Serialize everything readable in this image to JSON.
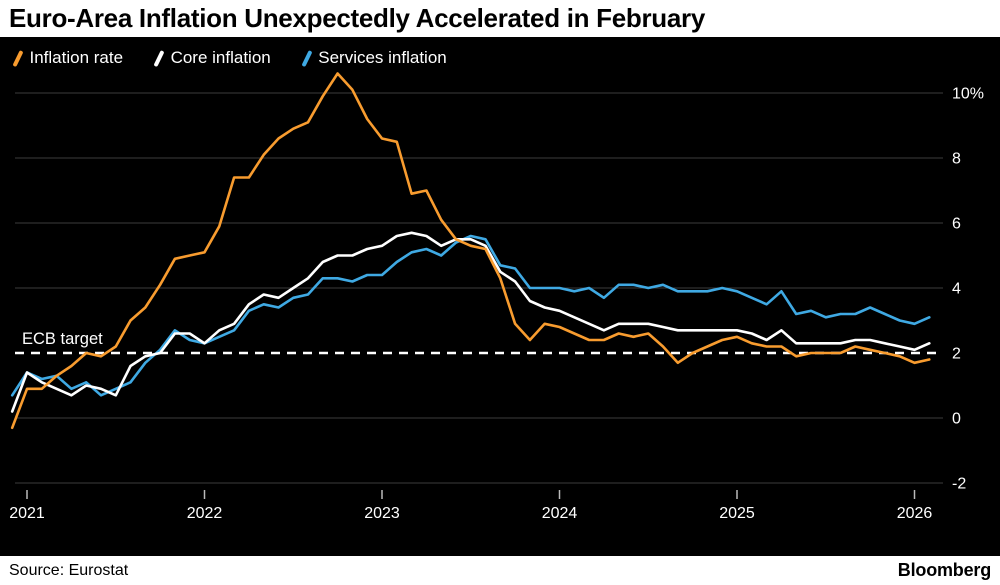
{
  "footer": {
    "source": "Source: Eurostat",
    "brand": "Bloomberg"
  },
  "chart_data": {
    "type": "line",
    "title": "Euro-Area Inflation Unexpectedly Accelerated in February",
    "xlabel": "",
    "ylabel": "",
    "x_unit": "month",
    "x_start_year": 2020.9167,
    "x_step_years": 0.0833333,
    "xlim": [
      2020.9,
      2026.2
    ],
    "ylim": [
      -2.6,
      10.9
    ],
    "grid": true,
    "grid_color": "#3c3c3c",
    "tick_color": "#bbbbbb",
    "background_color": "#000000",
    "legend_position": "top-left",
    "xticks": [
      2021,
      2022,
      2023,
      2024,
      2025,
      2026
    ],
    "yticks": [
      {
        "v": 10,
        "label": "10%"
      },
      {
        "v": 8,
        "label": "8"
      },
      {
        "v": 6,
        "label": "6"
      },
      {
        "v": 4,
        "label": "4"
      },
      {
        "v": 2,
        "label": "2"
      },
      {
        "v": 0,
        "label": "0"
      },
      {
        "v": -2,
        "label": "-2"
      }
    ],
    "target_line": {
      "v": 2,
      "label": "ECB target",
      "color": "#ffffff",
      "style": "dashed"
    },
    "series": [
      {
        "name": "Inflation rate",
        "color": "#F89C2F",
        "values": [
          -0.3,
          0.9,
          0.9,
          1.3,
          1.6,
          2.0,
          1.9,
          2.2,
          3.0,
          3.4,
          4.1,
          4.9,
          5.0,
          5.1,
          5.9,
          7.4,
          7.4,
          8.1,
          8.6,
          8.9,
          9.1,
          9.9,
          10.6,
          10.1,
          9.2,
          8.6,
          8.5,
          6.9,
          7.0,
          6.1,
          5.5,
          5.3,
          5.2,
          4.3,
          2.9,
          2.4,
          2.9,
          2.8,
          2.6,
          2.4,
          2.4,
          2.6,
          2.5,
          2.6,
          2.2,
          1.7,
          2.0,
          2.2,
          2.4,
          2.5,
          2.3,
          2.2,
          2.2,
          1.9,
          2.0,
          2.0,
          2.0,
          2.2,
          2.1,
          2.0,
          1.9,
          1.7,
          1.8
        ]
      },
      {
        "name": "Core inflation",
        "color": "#FFFFFF",
        "values": [
          0.2,
          1.4,
          1.1,
          0.9,
          0.7,
          1.0,
          0.9,
          0.7,
          1.6,
          1.9,
          2.0,
          2.6,
          2.6,
          2.3,
          2.7,
          2.9,
          3.5,
          3.8,
          3.7,
          4.0,
          4.3,
          4.8,
          5.0,
          5.0,
          5.2,
          5.3,
          5.6,
          5.7,
          5.6,
          5.3,
          5.5,
          5.5,
          5.3,
          4.5,
          4.2,
          3.6,
          3.4,
          3.3,
          3.1,
          2.9,
          2.7,
          2.9,
          2.9,
          2.9,
          2.8,
          2.7,
          2.7,
          2.7,
          2.7,
          2.7,
          2.6,
          2.4,
          2.7,
          2.3,
          2.3,
          2.3,
          2.3,
          2.4,
          2.4,
          2.3,
          2.2,
          2.1,
          2.3
        ]
      },
      {
        "name": "Services inflation",
        "color": "#3FA9E3",
        "values": [
          0.7,
          1.4,
          1.2,
          1.3,
          0.9,
          1.1,
          0.7,
          0.9,
          1.1,
          1.7,
          2.1,
          2.7,
          2.4,
          2.3,
          2.5,
          2.7,
          3.3,
          3.5,
          3.4,
          3.7,
          3.8,
          4.3,
          4.3,
          4.2,
          4.4,
          4.4,
          4.8,
          5.1,
          5.2,
          5.0,
          5.4,
          5.6,
          5.5,
          4.7,
          4.6,
          4.0,
          4.0,
          4.0,
          3.9,
          4.0,
          3.7,
          4.1,
          4.1,
          4.0,
          4.1,
          3.9,
          3.9,
          3.9,
          4.0,
          3.9,
          3.7,
          3.5,
          3.9,
          3.2,
          3.3,
          3.1,
          3.2,
          3.2,
          3.4,
          3.2,
          3.0,
          2.9,
          3.1
        ]
      }
    ]
  }
}
